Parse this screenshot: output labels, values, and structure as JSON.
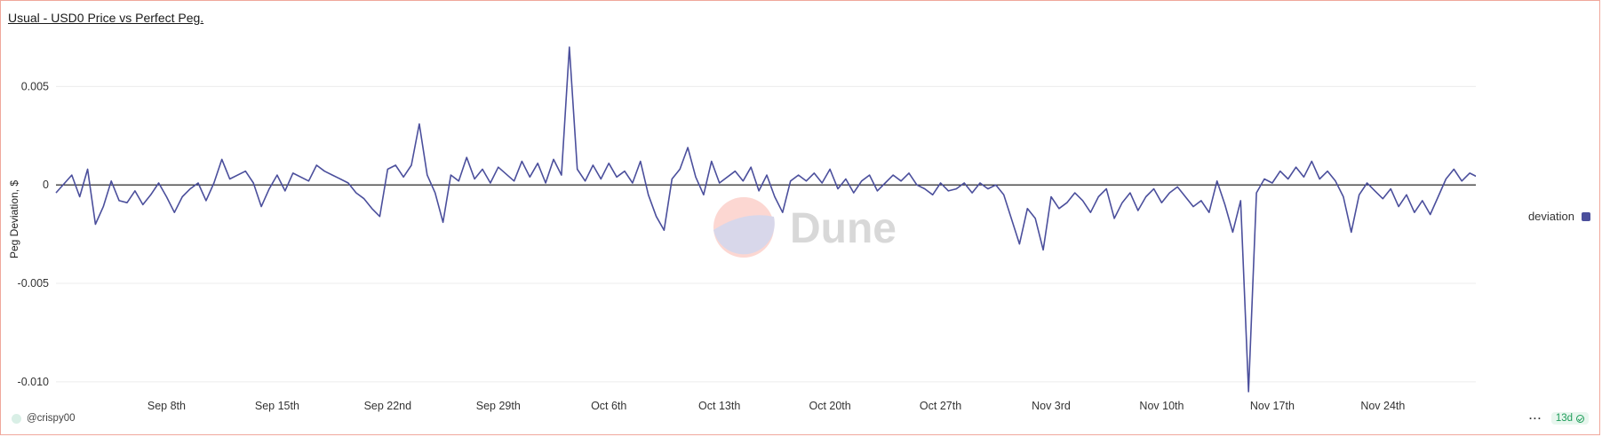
{
  "title": "Usual - USD0 Price vs Perfect Peg.",
  "watermark": "Dune",
  "legend_label": "deviation",
  "author": "@crispy00",
  "more_label": "···",
  "freshness_badge": "13d",
  "colors": {
    "series": "#4b4f9c",
    "frame": "#f0a89c",
    "badge": "#1f9d5a"
  },
  "chart_data": {
    "type": "line",
    "title": "Usual - USD0 Price vs Perfect Peg.",
    "ylabel": "Peg Deviation, $",
    "xlabel": "",
    "x_range": [
      "2024-09-01",
      "2024-11-30"
    ],
    "ylim": [
      -0.0105,
      0.007
    ],
    "yticks": [
      0.005,
      0,
      -0.005,
      -0.01
    ],
    "ytick_labels": [
      "0.005",
      "0",
      "-0.005",
      "-0.010"
    ],
    "xticks": [
      "2024-09-08",
      "2024-09-15",
      "2024-09-22",
      "2024-09-29",
      "2024-10-06",
      "2024-10-13",
      "2024-10-20",
      "2024-10-27",
      "2024-11-03",
      "2024-11-10",
      "2024-11-17",
      "2024-11-24"
    ],
    "xtick_labels": [
      "Sep 8th",
      "Sep 15th",
      "Sep 22nd",
      "Sep 29th",
      "Oct 6th",
      "Oct 13th",
      "Oct 20th",
      "Oct 27th",
      "Nov 3rd",
      "Nov 10th",
      "Nov 17th",
      "Nov 24th"
    ],
    "grid": true,
    "legend": "right",
    "series": [
      {
        "name": "deviation",
        "points": [
          [
            "2024-09-01",
            -0.0004
          ],
          [
            "2024-09-02",
            0.0005
          ],
          [
            "2024-09-02",
            -0.0006
          ],
          [
            "2024-09-03",
            0.0008
          ],
          [
            "2024-09-03",
            -0.002
          ],
          [
            "2024-09-04",
            -0.0011
          ],
          [
            "2024-09-04",
            0.0002
          ],
          [
            "2024-09-05",
            -0.0008
          ],
          [
            "2024-09-05",
            -0.0009
          ],
          [
            "2024-09-06",
            -0.0003
          ],
          [
            "2024-09-06",
            -0.001
          ],
          [
            "2024-09-07",
            -0.0005
          ],
          [
            "2024-09-07",
            0.0001
          ],
          [
            "2024-09-08",
            -0.0006
          ],
          [
            "2024-09-08",
            -0.0014
          ],
          [
            "2024-09-09",
            -0.0006
          ],
          [
            "2024-09-09",
            -0.0002
          ],
          [
            "2024-09-10",
            0.0001
          ],
          [
            "2024-09-10",
            -0.0008
          ],
          [
            "2024-09-11",
            0.0001
          ],
          [
            "2024-09-11",
            0.0013
          ],
          [
            "2024-09-12",
            0.0003
          ],
          [
            "2024-09-13",
            0.0007
          ],
          [
            "2024-09-13",
            0.0001
          ],
          [
            "2024-09-14",
            -0.0011
          ],
          [
            "2024-09-14",
            -0.0002
          ],
          [
            "2024-09-15",
            0.0005
          ],
          [
            "2024-09-15",
            -0.0003
          ],
          [
            "2024-09-16",
            0.0006
          ],
          [
            "2024-09-17",
            0.0002
          ],
          [
            "2024-09-17",
            0.001
          ],
          [
            "2024-09-18",
            0.0007
          ],
          [
            "2024-09-18",
            0.0005
          ],
          [
            "2024-09-19",
            0.0003
          ],
          [
            "2024-09-19",
            0.0001
          ],
          [
            "2024-09-20",
            -0.0004
          ],
          [
            "2024-09-20",
            -0.0007
          ],
          [
            "2024-09-21",
            -0.0012
          ],
          [
            "2024-09-21",
            -0.0016
          ],
          [
            "2024-09-22",
            0.0008
          ],
          [
            "2024-09-22",
            0.001
          ],
          [
            "2024-09-23",
            0.0004
          ],
          [
            "2024-09-23",
            0.001
          ],
          [
            "2024-09-24",
            0.0031
          ],
          [
            "2024-09-24",
            0.0005
          ],
          [
            "2024-09-25",
            -0.0004
          ],
          [
            "2024-09-25",
            -0.0019
          ],
          [
            "2024-09-26",
            0.0005
          ],
          [
            "2024-09-26",
            0.0002
          ],
          [
            "2024-09-27",
            0.0014
          ],
          [
            "2024-09-27",
            0.0003
          ],
          [
            "2024-09-28",
            0.0008
          ],
          [
            "2024-09-28",
            0.0001
          ],
          [
            "2024-09-29",
            0.0009
          ],
          [
            "2024-09-30",
            0.0002
          ],
          [
            "2024-09-30",
            0.0012
          ],
          [
            "2024-10-01",
            0.0004
          ],
          [
            "2024-10-01",
            0.0011
          ],
          [
            "2024-10-02",
            0.0001
          ],
          [
            "2024-10-02",
            0.0013
          ],
          [
            "2024-10-03",
            0.0005
          ],
          [
            "2024-10-03",
            0.007
          ],
          [
            "2024-10-04",
            0.0008
          ],
          [
            "2024-10-04",
            0.0002
          ],
          [
            "2024-10-05",
            0.001
          ],
          [
            "2024-10-05",
            0.0003
          ],
          [
            "2024-10-06",
            0.0011
          ],
          [
            "2024-10-06",
            0.0004
          ],
          [
            "2024-10-07",
            0.0007
          ],
          [
            "2024-10-07",
            0.0001
          ],
          [
            "2024-10-08",
            0.0012
          ],
          [
            "2024-10-08",
            -0.0005
          ],
          [
            "2024-10-09",
            -0.0016
          ],
          [
            "2024-10-09",
            -0.0023
          ],
          [
            "2024-10-10",
            0.0003
          ],
          [
            "2024-10-10",
            0.0008
          ],
          [
            "2024-10-11",
            0.0019
          ],
          [
            "2024-10-11",
            0.0004
          ],
          [
            "2024-10-12",
            -0.0005
          ],
          [
            "2024-10-12",
            0.0012
          ],
          [
            "2024-10-13",
            0.0001
          ],
          [
            "2024-10-14",
            0.0007
          ],
          [
            "2024-10-14",
            0.0002
          ],
          [
            "2024-10-15",
            0.0009
          ],
          [
            "2024-10-15",
            -0.0003
          ],
          [
            "2024-10-16",
            0.0005
          ],
          [
            "2024-10-16",
            -0.0006
          ],
          [
            "2024-10-17",
            -0.0014
          ],
          [
            "2024-10-17",
            0.0002
          ],
          [
            "2024-10-18",
            0.0005
          ],
          [
            "2024-10-18",
            0.0002
          ],
          [
            "2024-10-19",
            0.0006
          ],
          [
            "2024-10-19",
            0.0001
          ],
          [
            "2024-10-20",
            0.0008
          ],
          [
            "2024-10-20",
            -0.0002
          ],
          [
            "2024-10-21",
            0.0003
          ],
          [
            "2024-10-21",
            -0.0004
          ],
          [
            "2024-10-22",
            0.0002
          ],
          [
            "2024-10-22",
            0.0005
          ],
          [
            "2024-10-23",
            -0.0003
          ],
          [
            "2024-10-23",
            0.0001
          ],
          [
            "2024-10-24",
            0.0005
          ],
          [
            "2024-10-24",
            0.0002
          ],
          [
            "2024-10-25",
            0.0006
          ],
          [
            "2024-10-25",
            0.0
          ],
          [
            "2024-10-26",
            -0.0002
          ],
          [
            "2024-10-26",
            -0.0005
          ],
          [
            "2024-10-27",
            0.0001
          ],
          [
            "2024-10-27",
            -0.0003
          ],
          [
            "2024-10-28",
            -0.0002
          ],
          [
            "2024-10-28",
            0.0001
          ],
          [
            "2024-10-29",
            -0.0004
          ],
          [
            "2024-10-29",
            0.0001
          ],
          [
            "2024-10-30",
            -0.0002
          ],
          [
            "2024-10-30",
            0.0
          ],
          [
            "2024-10-31",
            -0.0005
          ],
          [
            "2024-11-01",
            -0.003
          ],
          [
            "2024-11-01",
            -0.0012
          ],
          [
            "2024-11-02",
            -0.0017
          ],
          [
            "2024-11-02",
            -0.0033
          ],
          [
            "2024-11-03",
            -0.0006
          ],
          [
            "2024-11-03",
            -0.0012
          ],
          [
            "2024-11-04",
            -0.0009
          ],
          [
            "2024-11-04",
            -0.0004
          ],
          [
            "2024-11-05",
            -0.0008
          ],
          [
            "2024-11-05",
            -0.0014
          ],
          [
            "2024-11-06",
            -0.0006
          ],
          [
            "2024-11-06",
            -0.0002
          ],
          [
            "2024-11-07",
            -0.0017
          ],
          [
            "2024-11-07",
            -0.0009
          ],
          [
            "2024-11-08",
            -0.0004
          ],
          [
            "2024-11-08",
            -0.0013
          ],
          [
            "2024-11-09",
            -0.0006
          ],
          [
            "2024-11-09",
            -0.0002
          ],
          [
            "2024-11-10",
            -0.0009
          ],
          [
            "2024-11-10",
            -0.0004
          ],
          [
            "2024-11-11",
            -0.0001
          ],
          [
            "2024-11-11",
            -0.0006
          ],
          [
            "2024-11-12",
            -0.0011
          ],
          [
            "2024-11-12",
            -0.0008
          ],
          [
            "2024-11-13",
            -0.0014
          ],
          [
            "2024-11-13",
            0.0002
          ],
          [
            "2024-11-14",
            -0.001
          ],
          [
            "2024-11-14",
            -0.0024
          ],
          [
            "2024-11-15",
            -0.0008
          ],
          [
            "2024-11-15",
            -0.0105
          ],
          [
            "2024-11-16",
            -0.0004
          ],
          [
            "2024-11-16",
            0.0003
          ],
          [
            "2024-11-17",
            0.0001
          ],
          [
            "2024-11-17",
            0.0007
          ],
          [
            "2024-11-18",
            0.0003
          ],
          [
            "2024-11-18",
            0.0009
          ],
          [
            "2024-11-19",
            0.0004
          ],
          [
            "2024-11-19",
            0.0012
          ],
          [
            "2024-11-20",
            0.0003
          ],
          [
            "2024-11-20",
            0.0007
          ],
          [
            "2024-11-21",
            0.0002
          ],
          [
            "2024-11-21",
            -0.0006
          ],
          [
            "2024-11-22",
            -0.0024
          ],
          [
            "2024-11-22",
            -0.0005
          ],
          [
            "2024-11-23",
            0.0001
          ],
          [
            "2024-11-23",
            -0.0003
          ],
          [
            "2024-11-24",
            -0.0007
          ],
          [
            "2024-11-24",
            -0.0002
          ],
          [
            "2024-11-25",
            -0.0011
          ],
          [
            "2024-11-25",
            -0.0005
          ],
          [
            "2024-11-26",
            -0.0014
          ],
          [
            "2024-11-26",
            -0.0008
          ],
          [
            "2024-11-27",
            -0.0015
          ],
          [
            "2024-11-27",
            -0.0006
          ],
          [
            "2024-11-28",
            0.0003
          ],
          [
            "2024-11-28",
            0.0008
          ],
          [
            "2024-11-29",
            0.0002
          ],
          [
            "2024-11-29",
            0.0006
          ],
          [
            "2024-11-30",
            0.0004
          ]
        ]
      }
    ]
  }
}
